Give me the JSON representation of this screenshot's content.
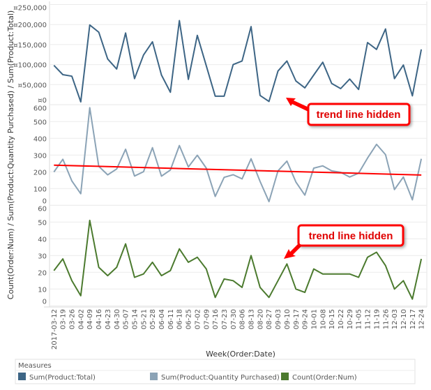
{
  "chart_data": {
    "type": "line",
    "x_title": "Week(Order:Date)",
    "y_title": "Count(Order:Num) / Sum(Product:Quantity Purchased) / Sum(Product:Total)",
    "categories": [
      "2017-03-12",
      "03-19",
      "03-26",
      "04-02",
      "04-09",
      "04-16",
      "04-23",
      "04-30",
      "05-07",
      "05-14",
      "05-21",
      "05-28",
      "06-04",
      "06-11",
      "06-18",
      "06-25",
      "07-02",
      "07-09",
      "07-16",
      "07-23",
      "07-30",
      "08-06",
      "08-13",
      "08-20",
      "08-27",
      "09-03",
      "09-10",
      "09-17",
      "09-24",
      "10-01",
      "10-08",
      "10-15",
      "10-22",
      "10-29",
      "11-05",
      "11-12",
      "11-19",
      "11-26",
      "12-03",
      "12-10",
      "12-17",
      "12-24"
    ],
    "grid": true,
    "panels": [
      {
        "name": "Sum(Product:Total)",
        "color": "#3d6585",
        "ylim": [
          0,
          250000
        ],
        "ticks": [
          0,
          50000,
          100000,
          150000,
          200000,
          250000
        ],
        "tick_labels": [
          "¤0",
          "¤50,000",
          "¤100,000",
          "¤150,000",
          "¤200,000",
          "¤250,000"
        ],
        "values": [
          98000,
          75000,
          71000,
          7000,
          199000,
          181000,
          114000,
          89000,
          179000,
          65000,
          124000,
          157000,
          74000,
          31000,
          210000,
          63000,
          173000,
          97000,
          21000,
          21000,
          100000,
          109000,
          195000,
          23000,
          8000,
          84000,
          109000,
          59000,
          42000,
          74000,
          106000,
          53000,
          40000,
          64000,
          38000,
          155000,
          138000,
          189000,
          65000,
          99000,
          22000,
          138000
        ],
        "trend_line": null
      },
      {
        "name": "Sum(Product:Quantity Purchased)",
        "color": "#8ba3b6",
        "ylim": [
          0,
          600
        ],
        "ticks": [
          0,
          100,
          200,
          300,
          400,
          500,
          600
        ],
        "tick_labels": [
          "0",
          "100",
          "200",
          "300",
          "400",
          "500",
          "600"
        ],
        "values": [
          199,
          275,
          146,
          69,
          583,
          233,
          182,
          217,
          335,
          175,
          201,
          344,
          174,
          211,
          357,
          229,
          299,
          222,
          53,
          167,
          183,
          158,
          278,
          143,
          22,
          206,
          264,
          139,
          61,
          222,
          236,
          206,
          197,
          169,
          192,
          282,
          364,
          303,
          94,
          169,
          33,
          278
        ],
        "trend_line": {
          "color": "#ff0000",
          "start": 240,
          "end": 181
        }
      },
      {
        "name": "Count(Order:Num)",
        "color": "#4b7a2e",
        "ylim": [
          0,
          60
        ],
        "ticks": [
          0,
          10,
          20,
          30,
          40,
          50,
          60
        ],
        "tick_labels": [
          "0",
          "10",
          "20",
          "30",
          "40",
          "50",
          "60"
        ],
        "values": [
          21,
          28,
          15,
          6,
          51,
          23,
          18,
          23,
          37,
          17,
          19,
          26,
          18,
          21,
          34,
          26,
          29,
          22,
          5,
          16,
          15,
          11,
          30,
          11,
          5,
          15,
          25,
          10,
          8,
          22,
          19,
          19,
          19,
          19,
          17,
          29,
          32,
          24,
          10,
          15,
          4,
          28
        ],
        "trend_line": null
      }
    ],
    "legend": {
      "title": "Measures",
      "placement": "bottom",
      "items": [
        {
          "label": "Sum(Product:Total)",
          "color": "#3d6585"
        },
        {
          "label": "Sum(Product:Quantity Purchased)",
          "color": "#8ba3b6"
        },
        {
          "label": "Count(Order:Num)",
          "color": "#4b7a2e"
        }
      ]
    },
    "annotations": [
      {
        "text": "trend line hidden"
      },
      {
        "text": "trend line hidden"
      }
    ]
  }
}
